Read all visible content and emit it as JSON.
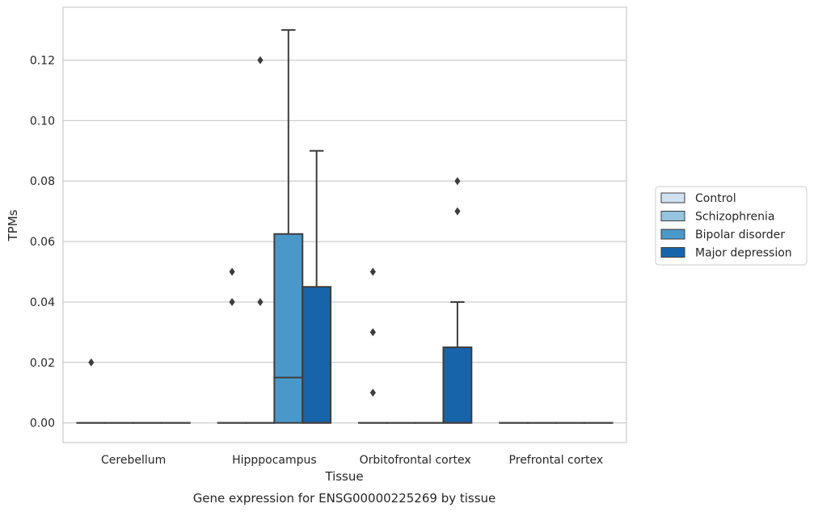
{
  "chart_data": {
    "type": "box",
    "title": "",
    "caption": "Gene expression for ENSG00000225269 by tissue",
    "xlabel": "Tissue",
    "ylabel": "TPMs",
    "ylim": [
      -0.0065,
      0.1375
    ],
    "yticks": [
      0.0,
      0.02,
      0.04,
      0.06,
      0.08,
      0.1,
      0.12
    ],
    "ytick_labels": [
      "0.00",
      "0.02",
      "0.04",
      "0.06",
      "0.08",
      "0.10",
      "0.12"
    ],
    "grid": true,
    "legend_position": "right",
    "categories": [
      "Cerebellum",
      "Hipppocampus",
      "Orbitofrontal cortex",
      "Prefrontal cortex"
    ],
    "series": [
      {
        "name": "Control",
        "color": "#d0e1f2",
        "boxes": [
          {
            "q1": 0,
            "median": 0,
            "q3": 0,
            "whisker_low": 0,
            "whisker_high": 0,
            "outliers": [
              0.02
            ]
          },
          {
            "q1": 0,
            "median": 0,
            "q3": 0,
            "whisker_low": 0,
            "whisker_high": 0,
            "outliers": [
              0.05,
              0.04
            ]
          },
          {
            "q1": 0,
            "median": 0,
            "q3": 0,
            "whisker_low": 0,
            "whisker_high": 0,
            "outliers": [
              0.05,
              0.03,
              0.01
            ]
          },
          {
            "q1": 0,
            "median": 0,
            "q3": 0,
            "whisker_low": 0,
            "whisker_high": 0,
            "outliers": []
          }
        ]
      },
      {
        "name": "Schizophrenia",
        "color": "#94c4df",
        "boxes": [
          {
            "q1": 0,
            "median": 0,
            "q3": 0,
            "whisker_low": 0,
            "whisker_high": 0,
            "outliers": []
          },
          {
            "q1": 0,
            "median": 0,
            "q3": 0,
            "whisker_low": 0,
            "whisker_high": 0,
            "outliers": [
              0.12,
              0.04
            ]
          },
          {
            "q1": 0,
            "median": 0,
            "q3": 0,
            "whisker_low": 0,
            "whisker_high": 0,
            "outliers": []
          },
          {
            "q1": 0,
            "median": 0,
            "q3": 0,
            "whisker_low": 0,
            "whisker_high": 0,
            "outliers": []
          }
        ]
      },
      {
        "name": "Bipolar disorder",
        "color": "#4a98c9",
        "boxes": [
          {
            "q1": 0,
            "median": 0,
            "q3": 0,
            "whisker_low": 0,
            "whisker_high": 0,
            "outliers": []
          },
          {
            "q1": 0,
            "median": 0.015,
            "q3": 0.0625,
            "whisker_low": 0,
            "whisker_high": 0.13,
            "outliers": []
          },
          {
            "q1": 0,
            "median": 0,
            "q3": 0,
            "whisker_low": 0,
            "whisker_high": 0,
            "outliers": []
          },
          {
            "q1": 0,
            "median": 0,
            "q3": 0,
            "whisker_low": 0,
            "whisker_high": 0,
            "outliers": []
          }
        ]
      },
      {
        "name": "Major depression",
        "color": "#1764ab",
        "boxes": [
          {
            "q1": 0,
            "median": 0,
            "q3": 0,
            "whisker_low": 0,
            "whisker_high": 0,
            "outliers": []
          },
          {
            "q1": 0,
            "median": 0,
            "q3": 0.045,
            "whisker_low": 0,
            "whisker_high": 0.09,
            "outliers": []
          },
          {
            "q1": 0,
            "median": 0,
            "q3": 0.025,
            "whisker_low": 0,
            "whisker_high": 0.04,
            "outliers": [
              0.08,
              0.07
            ]
          },
          {
            "q1": 0,
            "median": 0,
            "q3": 0,
            "whisker_low": 0,
            "whisker_high": 0,
            "outliers": []
          }
        ]
      }
    ]
  }
}
